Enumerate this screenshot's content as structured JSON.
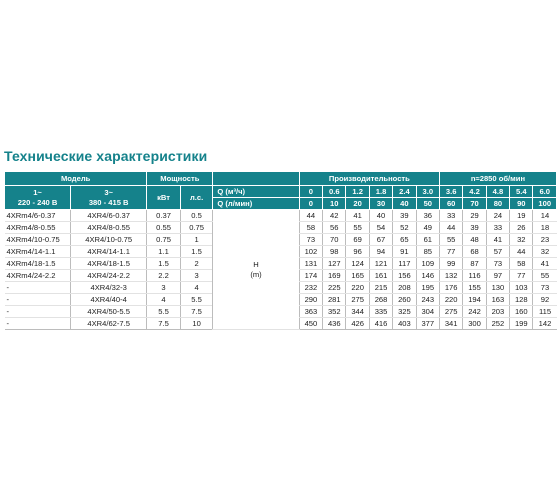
{
  "title": "Технические характеристики",
  "header": {
    "model": "Модель",
    "power": "Мощность",
    "performance": "Производительность",
    "speed": "n≈2850 об/мин",
    "one_phase_a": "1~",
    "one_phase_b": "220 - 240 В",
    "three_phase_a": "3~",
    "three_phase_b": "380 - 415 В",
    "kw": "кВт",
    "hp": "л.с.",
    "q_m3": "Q (м³/ч)",
    "q_lmin": "Q (л/мин)",
    "q_m3_values": [
      "0",
      "0.6",
      "1.2",
      "1.8",
      "2.4",
      "3.0",
      "3.6",
      "4.2",
      "4.8",
      "5.4",
      "6.0"
    ],
    "q_lmin_values": [
      "0",
      "10",
      "20",
      "30",
      "40",
      "50",
      "60",
      "70",
      "80",
      "90",
      "100"
    ]
  },
  "head_label_a": "H",
  "head_label_b": "(m)",
  "rows": [
    {
      "m1": "4XRm4/6-0.37",
      "m3": "4XR4/6-0.37",
      "kw": "0.37",
      "hp": "0.5",
      "h": [
        "44",
        "42",
        "41",
        "40",
        "39",
        "36",
        "33",
        "29",
        "24",
        "19",
        "14"
      ]
    },
    {
      "m1": "4XRm4/8-0.55",
      "m3": "4XR4/8-0.55",
      "kw": "0.55",
      "hp": "0.75",
      "h": [
        "58",
        "56",
        "55",
        "54",
        "52",
        "49",
        "44",
        "39",
        "33",
        "26",
        "18"
      ]
    },
    {
      "m1": "4XRm4/10-0.75",
      "m3": "4XR4/10-0.75",
      "kw": "0.75",
      "hp": "1",
      "h": [
        "73",
        "70",
        "69",
        "67",
        "65",
        "61",
        "55",
        "48",
        "41",
        "32",
        "23"
      ]
    },
    {
      "m1": "4XRm4/14-1.1",
      "m3": "4XR4/14-1.1",
      "kw": "1.1",
      "hp": "1.5",
      "h": [
        "102",
        "98",
        "96",
        "94",
        "91",
        "85",
        "77",
        "68",
        "57",
        "44",
        "32"
      ]
    },
    {
      "m1": "4XRm4/18-1.5",
      "m3": "4XR4/18-1.5",
      "kw": "1.5",
      "hp": "2",
      "h": [
        "131",
        "127",
        "124",
        "121",
        "117",
        "109",
        "99",
        "87",
        "73",
        "58",
        "41"
      ]
    },
    {
      "m1": "4XRm4/24-2.2",
      "m3": "4XR4/24-2.2",
      "kw": "2.2",
      "hp": "3",
      "h": [
        "174",
        "169",
        "165",
        "161",
        "156",
        "146",
        "132",
        "116",
        "97",
        "77",
        "55"
      ]
    },
    {
      "m1": "-",
      "m3": "4XR4/32-3",
      "kw": "3",
      "hp": "4",
      "h": [
        "232",
        "225",
        "220",
        "215",
        "208",
        "195",
        "176",
        "155",
        "130",
        "103",
        "73"
      ]
    },
    {
      "m1": "-",
      "m3": "4XR4/40-4",
      "kw": "4",
      "hp": "5.5",
      "h": [
        "290",
        "281",
        "275",
        "268",
        "260",
        "243",
        "220",
        "194",
        "163",
        "128",
        "92"
      ]
    },
    {
      "m1": "-",
      "m3": "4XR4/50-5.5",
      "kw": "5.5",
      "hp": "7.5",
      "h": [
        "363",
        "352",
        "344",
        "335",
        "325",
        "304",
        "275",
        "242",
        "203",
        "160",
        "115"
      ]
    },
    {
      "m1": "-",
      "m3": "4XR4/62-7.5",
      "kw": "7.5",
      "hp": "10",
      "h": [
        "450",
        "436",
        "426",
        "416",
        "403",
        "377",
        "341",
        "300",
        "252",
        "199",
        "142"
      ]
    }
  ]
}
